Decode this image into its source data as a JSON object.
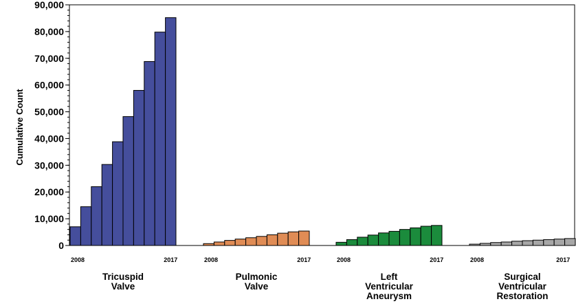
{
  "chart_data": {
    "type": "bar",
    "title": "",
    "ylabel": "Cumulative Count",
    "ylim": [
      0,
      90000
    ],
    "yticks": [
      0,
      10000,
      20000,
      30000,
      40000,
      50000,
      60000,
      70000,
      80000,
      90000
    ],
    "ytick_labels": [
      "0",
      "10,000",
      "20,000",
      "30,000",
      "40,000",
      "50,000",
      "60,000",
      "70,000",
      "80,000",
      "90,000"
    ],
    "grid": false,
    "legend": "none",
    "years": [
      2008,
      2009,
      2010,
      2011,
      2012,
      2013,
      2014,
      2015,
      2016,
      2017
    ],
    "year_first_label": "2008",
    "year_last_label": "2017",
    "groups": [
      {
        "label_lines": [
          "Tricuspid",
          "Valve"
        ],
        "color": "#454e9c",
        "values": [
          7000,
          14500,
          22000,
          30300,
          38800,
          48200,
          58000,
          68800,
          79800,
          85200
        ]
      },
      {
        "label_lines": [
          "Pulmonic",
          "Valve"
        ],
        "color": "#e08c55",
        "values": [
          700,
          1300,
          1900,
          2400,
          2900,
          3400,
          4000,
          4600,
          5100,
          5400
        ]
      },
      {
        "label_lines": [
          "Left",
          "Ventricular",
          "Aneurysm"
        ],
        "color": "#1b8b3c",
        "values": [
          1200,
          2200,
          3100,
          3900,
          4700,
          5300,
          6000,
          6600,
          7200,
          7500
        ]
      },
      {
        "label_lines": [
          "Surgical",
          "Ventricular",
          "Restoration"
        ],
        "color": "#a7a7a7",
        "values": [
          500,
          800,
          1100,
          1300,
          1600,
          1800,
          2000,
          2200,
          2400,
          2600
        ]
      }
    ]
  }
}
